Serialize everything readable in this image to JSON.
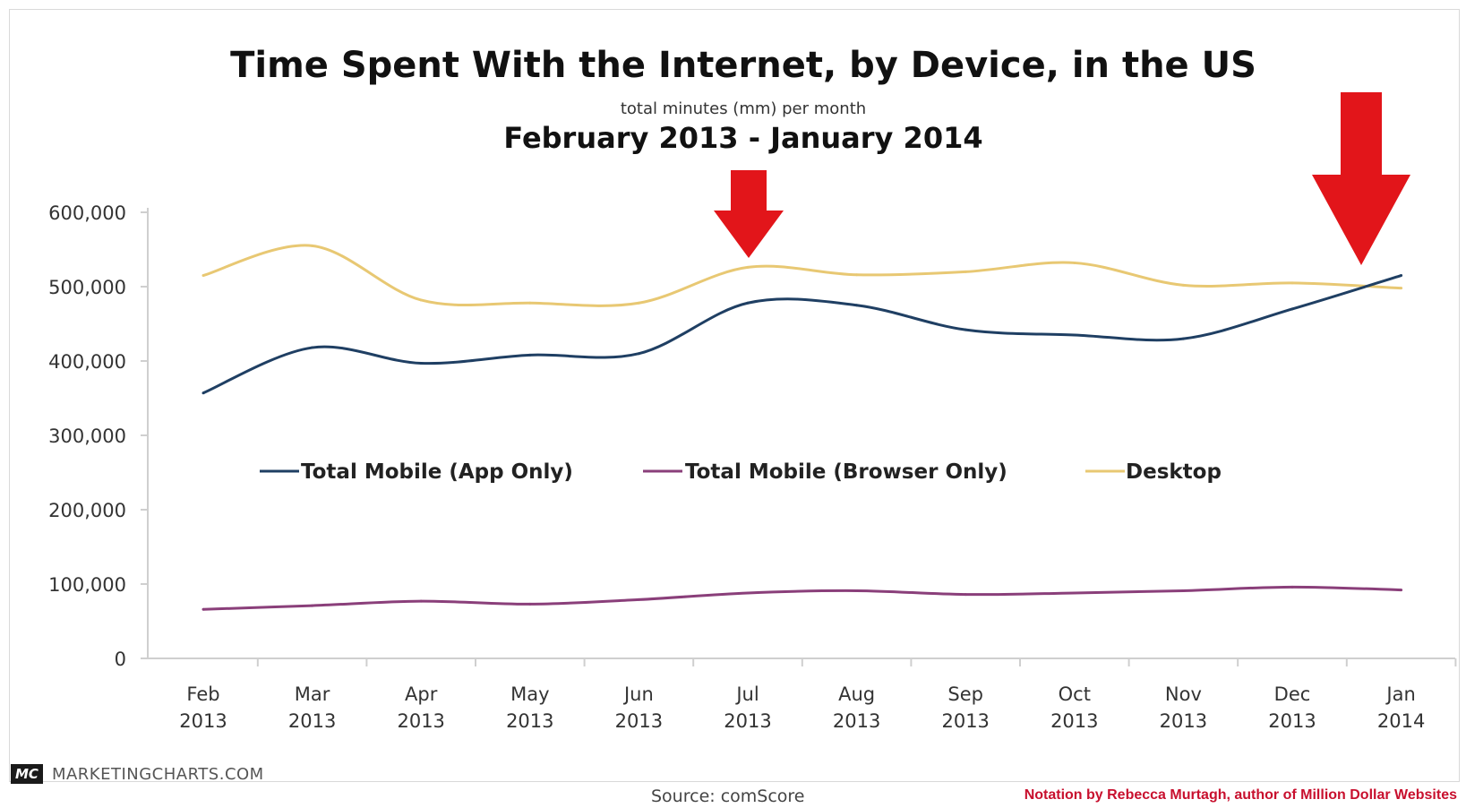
{
  "chart_data": {
    "type": "line",
    "title": "Time Spent With the Internet, by Device, in the US",
    "subtitle": "total minutes (mm) per month",
    "date_range": "February 2013 - January 2014",
    "x": [
      "Feb 2013",
      "Mar 2013",
      "Apr 2013",
      "May 2013",
      "Jun 2013",
      "Jul 2013",
      "Aug 2013",
      "Sep 2013",
      "Oct 2013",
      "Nov 2013",
      "Dec 2013",
      "Jan 2014"
    ],
    "x_tick_lines": [
      [
        "Feb",
        "2013"
      ],
      [
        "Mar",
        "2013"
      ],
      [
        "Apr",
        "2013"
      ],
      [
        "May",
        "2013"
      ],
      [
        "Jun",
        "2013"
      ],
      [
        "Jul",
        "2013"
      ],
      [
        "Aug",
        "2013"
      ],
      [
        "Sep",
        "2013"
      ],
      [
        "Oct",
        "2013"
      ],
      [
        "Nov",
        "2013"
      ],
      [
        "Dec",
        "2013"
      ],
      [
        "Jan",
        "2014"
      ]
    ],
    "ylim": [
      0,
      600000
    ],
    "y_ticks": [
      "0",
      "100,000",
      "200,000",
      "300,000",
      "400,000",
      "500,000",
      "600,000"
    ],
    "grid": false,
    "legend_position": "center",
    "series": [
      {
        "name": "Total Mobile (App Only)",
        "color": "#1f3f63",
        "values": [
          357000,
          418000,
          397000,
          408000,
          410000,
          478000,
          475000,
          442000,
          435000,
          430000,
          470000,
          515000
        ]
      },
      {
        "name": "Total Mobile (Browser Only)",
        "color": "#8a3f7a",
        "values": [
          66000,
          71000,
          77000,
          73000,
          79000,
          88000,
          91000,
          86000,
          88000,
          91000,
          96000,
          92000
        ]
      },
      {
        "name": "Desktop",
        "color": "#e8c873",
        "values": [
          515000,
          555000,
          482000,
          478000,
          478000,
          526000,
          516000,
          520000,
          532000,
          502000,
          505000,
          498000
        ]
      }
    ],
    "annotations": [
      {
        "type": "arrow-down",
        "at": "Jul 2013",
        "color": "#e2151a"
      },
      {
        "type": "arrow-down",
        "at": "Jan 2014",
        "color": "#e2151a"
      }
    ]
  },
  "branding": {
    "logo": "MC",
    "site": "MARKETINGCHARTS.COM"
  },
  "source": "Source: comScore",
  "notation": "Notation by Rebecca Murtagh, author of Million Dollar Websites"
}
